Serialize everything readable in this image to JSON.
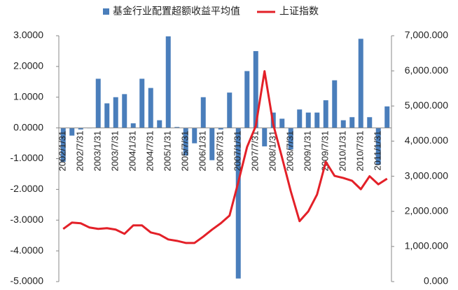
{
  "chart_data": {
    "type": "bar",
    "categories": [
      "2002/1/31",
      null,
      "2002/7/31",
      null,
      "2003/1/31",
      null,
      "2003/7/31",
      null,
      "2004/1/31",
      null,
      "2004/7/31",
      null,
      "2005/1/31",
      null,
      "2005/7/31",
      null,
      "2006/1/31",
      null,
      "2006/7/31",
      null,
      "2007/1/31",
      null,
      "2007/7/31",
      null,
      "2008/1/31",
      null,
      "2008/7/31",
      null,
      "2009/1/31",
      null,
      "2009/7/31",
      null,
      "2010/1/31",
      null,
      "2010/7/31",
      null,
      "2011/1/31",
      null
    ],
    "series": [
      {
        "name": "基金行业配置超额收益平均值",
        "color": "#4a7ebb",
        "type": "bar",
        "values": [
          -1.1,
          -0.25,
          -0.05,
          0,
          1.6,
          0.8,
          1.0,
          1.1,
          0.15,
          1.6,
          1.3,
          0.25,
          2.98,
          0.03,
          -0.9,
          -0.5,
          1.0,
          -1.05,
          -0.05,
          1.15,
          -4.9,
          1.85,
          2.5,
          -0.6,
          0.5,
          0.3,
          -0.7,
          0.6,
          0.5,
          0.5,
          0.9,
          1.55,
          0.25,
          0.35,
          2.9,
          0.35,
          -1.2,
          0.7
        ]
      },
      {
        "name": "上证指数",
        "color": "#e32028",
        "type": "line",
        "axis": "y2",
        "values": [
          1500,
          1680,
          1660,
          1540,
          1500,
          1520,
          1480,
          1360,
          1600,
          1600,
          1400,
          1340,
          1200,
          1160,
          1100,
          1100,
          1280,
          1480,
          1660,
          1880,
          2830,
          3830,
          4430,
          5990,
          4470,
          3530,
          2570,
          1720,
          2000,
          2480,
          3410,
          3010,
          2950,
          2870,
          2630,
          3000,
          2770,
          2930
        ]
      }
    ],
    "ylim": [
      -5,
      3
    ],
    "yticks": [
      {
        "value": 3,
        "label": "3.0000"
      },
      {
        "value": 2,
        "label": "2.0000"
      },
      {
        "value": 1,
        "label": "1.0000"
      },
      {
        "value": 0,
        "label": "0.0000"
      },
      {
        "value": -1,
        "label": "-1.0000"
      },
      {
        "value": -2,
        "label": "-2.0000"
      },
      {
        "value": -3,
        "label": "-3.0000"
      },
      {
        "value": -4,
        "label": "-4.0000"
      },
      {
        "value": -5,
        "label": "-5.0000"
      }
    ],
    "y2lim": [
      0,
      7000
    ],
    "y2ticks": [
      {
        "value": 7000,
        "label": "7,000.000"
      },
      {
        "value": 6000,
        "label": "6,000.000"
      },
      {
        "value": 5000,
        "label": "5,000.000"
      },
      {
        "value": 4000,
        "label": "4,000.000"
      },
      {
        "value": 3000,
        "label": "3,000.000"
      },
      {
        "value": 2000,
        "label": "2,000.000"
      },
      {
        "value": 1000,
        "label": "1,000.000"
      },
      {
        "value": 0,
        "label": "0.000"
      }
    ],
    "legend": "top"
  }
}
